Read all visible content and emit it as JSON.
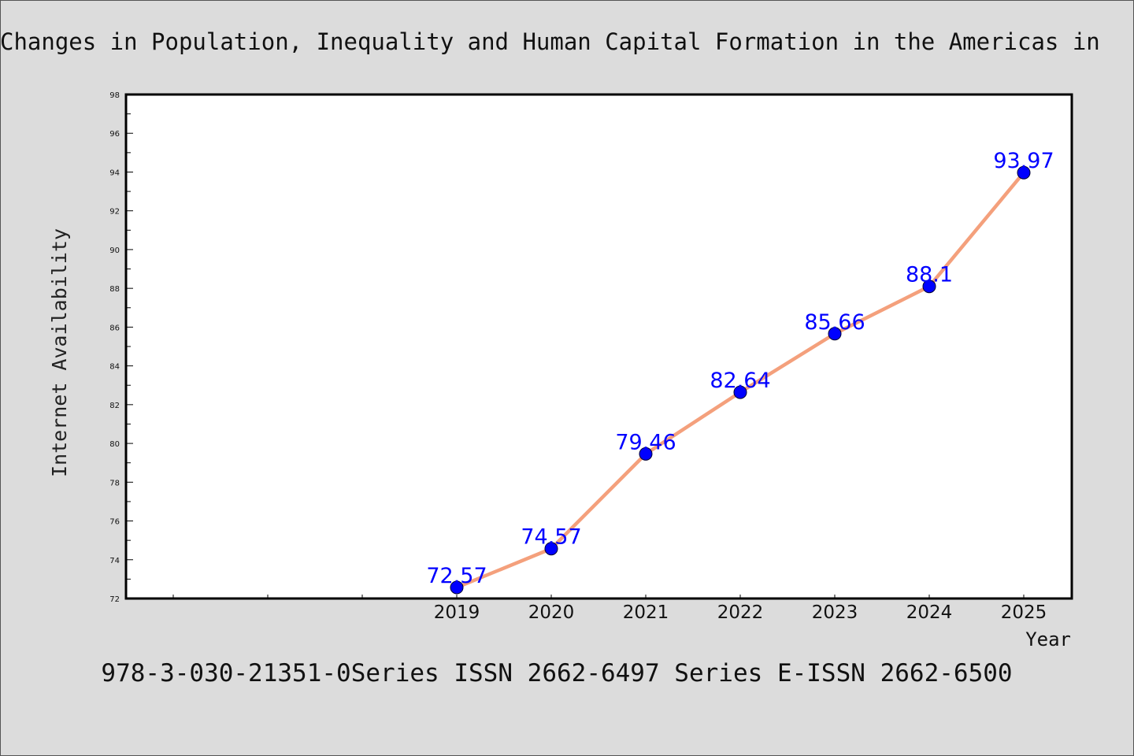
{
  "chart_data": {
    "type": "line",
    "title": "Changes in Population, Inequality and Human Capital Formation in the Americas in",
    "xlabel": "Year",
    "ylabel": "Internet Availability",
    "x": [
      "2019",
      "2020",
      "2021",
      "2022",
      "2023",
      "2024",
      "2025"
    ],
    "series": [
      {
        "values": [
          72.57,
          74.57,
          79.46,
          82.64,
          85.66,
          88.1,
          93.97
        ]
      }
    ],
    "data_labels": [
      "72.57",
      "74.57",
      "79.46",
      "82.64",
      "85.66",
      "88.1",
      "93.97"
    ],
    "ylim": [
      72,
      98
    ],
    "yticks": [
      "72",
      "74",
      "76",
      "78",
      "80",
      "82",
      "84",
      "86",
      "88",
      "90",
      "92",
      "94",
      "96",
      "98"
    ],
    "grid": false,
    "legend": "none",
    "colors": {
      "line": "#f4a07c",
      "marker": "#0000ff",
      "label": "#0000ff",
      "background": "#dcdcdc",
      "plot_background": "#ffffff"
    }
  },
  "footer": "978-3-030-21351-0Series ISSN 2662-6497 Series E-ISSN 2662-6500"
}
